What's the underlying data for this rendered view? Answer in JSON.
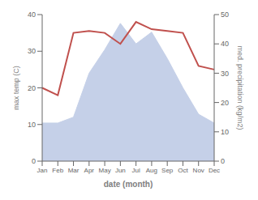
{
  "chart_data": {
    "type": "line",
    "categories": [
      "Jan",
      "Feb",
      "Mar",
      "Apr",
      "May",
      "Jun",
      "Jul",
      "Aug",
      "Sep",
      "Oct",
      "Nov",
      "Dec"
    ],
    "series": [
      {
        "type": "area",
        "color": "#c5d0e8",
        "axis": "y2",
        "values": [
          13,
          13,
          15,
          30,
          38,
          47,
          40,
          44,
          35,
          25,
          16,
          13
        ]
      },
      {
        "type": "line",
        "color": "#c0504d",
        "values": [
          20,
          18,
          35,
          35.5,
          35,
          32,
          38,
          36,
          35.5,
          35,
          26,
          25
        ]
      }
    ],
    "xlabel": "date (month)",
    "ylabel": "max temp (C)",
    "y2label": "med. precipitation (kg/m2)",
    "ylim": [
      0,
      40
    ],
    "yticks": [
      0,
      10,
      20,
      30,
      40
    ],
    "y2lim": [
      0,
      50
    ],
    "y2ticks": [
      0,
      10,
      20,
      30,
      40,
      50
    ],
    "grid": false
  }
}
